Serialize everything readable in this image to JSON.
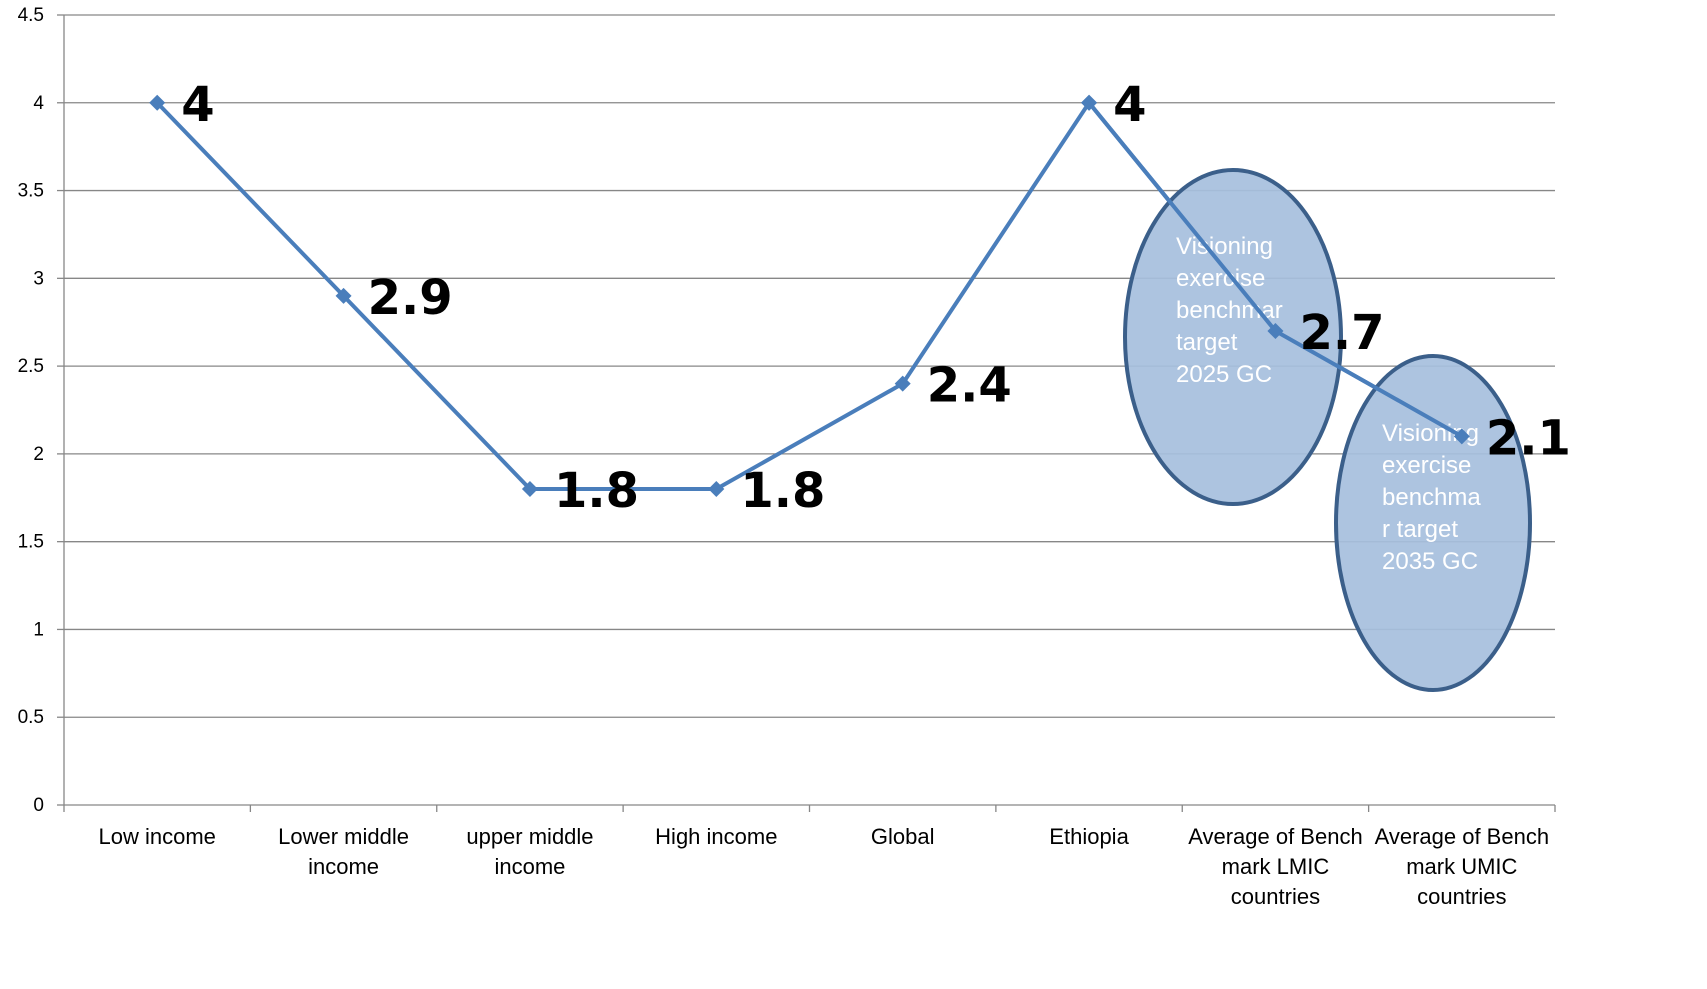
{
  "chart_data": {
    "type": "line",
    "categories": [
      "Low income",
      "Lower middle income",
      "upper middle income",
      "High  income",
      "Global",
      "Ethiopia",
      "Average of Bench mark LMIC countries",
      "Average of Bench mark UMIC countries"
    ],
    "category_lines": [
      [
        "Low income"
      ],
      [
        "Lower middle",
        "income"
      ],
      [
        "upper middle",
        "income"
      ],
      [
        "High  income"
      ],
      [
        "Global"
      ],
      [
        "Ethiopia"
      ],
      [
        "Average of Bench",
        "mark LMIC",
        "countries"
      ],
      [
        "Average of Bench",
        "mark UMIC",
        "countries"
      ]
    ],
    "series": [
      {
        "values": [
          4,
          2.9,
          1.8,
          1.8,
          2.4,
          4,
          2.7,
          2.1
        ],
        "data_labels": [
          "4",
          "2.9",
          "1.8",
          "1.8",
          "2.4",
          "4",
          "2.7",
          "2.1"
        ],
        "color": "#4a7ebb"
      }
    ],
    "ylim": [
      0,
      4.5
    ],
    "yticks": [
      "0",
      "0.5",
      "1",
      "1.5",
      "2",
      "2.5",
      "3",
      "3.5",
      "4",
      "4.5"
    ],
    "grid": true,
    "title": "",
    "xlabel": "",
    "ylabel": "",
    "annotations": [
      {
        "lines": [
          "Visioning",
          "exercise",
          "benchmar",
          "target",
          "2025 GC"
        ],
        "category_index": 6,
        "fill": "#a6bfdd",
        "stroke": "#3b5f8a"
      },
      {
        "lines": [
          "Visioning",
          "exercise",
          "benchma",
          "r  target",
          "2035 GC"
        ],
        "category_index": 7,
        "fill": "#a6bfdd",
        "stroke": "#3b5f8a"
      }
    ]
  }
}
